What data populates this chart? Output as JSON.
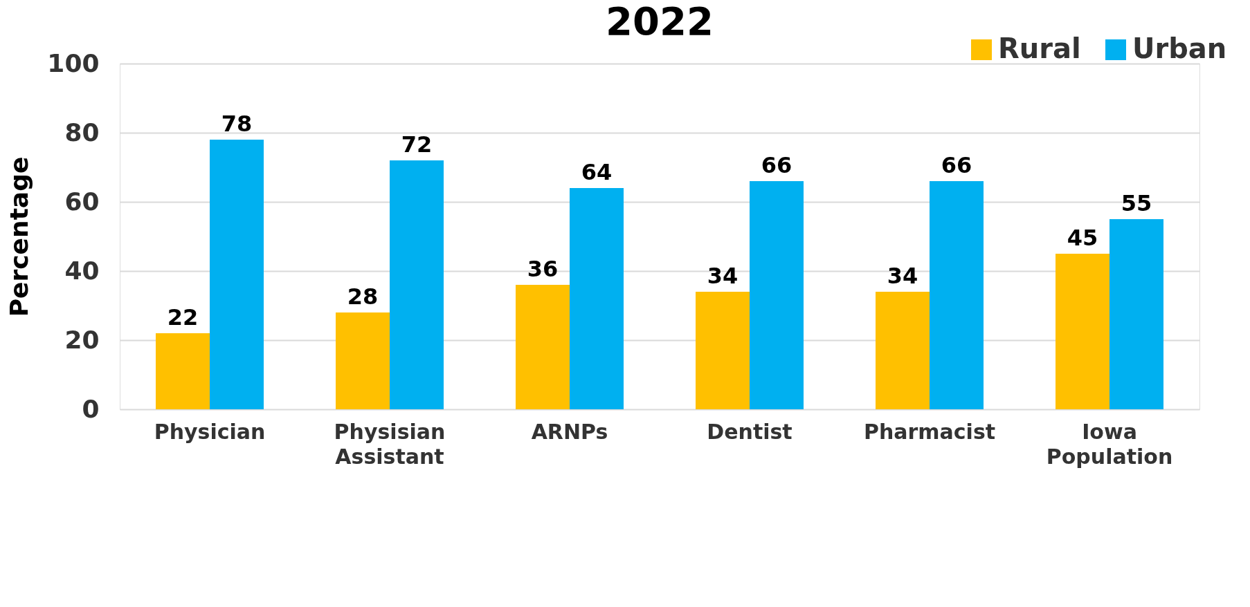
{
  "chart_data": {
    "type": "bar",
    "title": "2022",
    "ylabel": "Percentage",
    "categories": [
      "Physician",
      "Physisian Assistant",
      "ARNPs",
      "Dentist",
      "Pharmacist",
      "Iowa Population"
    ],
    "series": [
      {
        "name": "Rural",
        "color": "#ffc000",
        "values": [
          22,
          28,
          36,
          34,
          34,
          45
        ]
      },
      {
        "name": "Urban",
        "color": "#00b0f0",
        "values": [
          78,
          72,
          64,
          66,
          66,
          55
        ]
      }
    ],
    "ylim": [
      0,
      100
    ],
    "yticks": [
      0,
      20,
      40,
      60,
      80,
      100
    ],
    "grid": "y",
    "legend": "top right",
    "data_labels": true
  }
}
